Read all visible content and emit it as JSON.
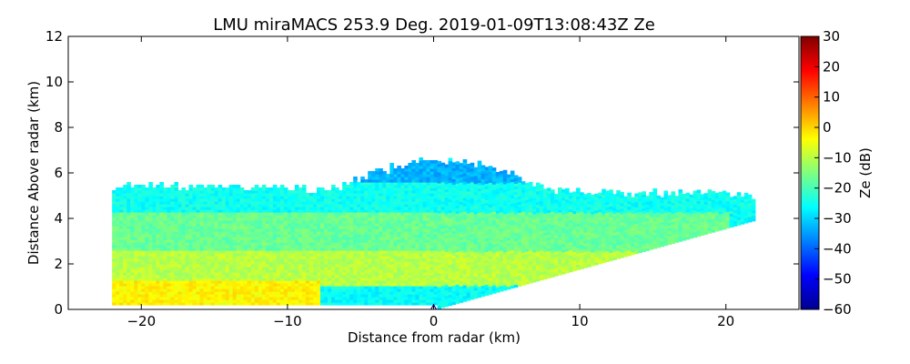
{
  "chart_data": {
    "type": "heatmap",
    "title": "LMU miraMACS 253.9 Deg. 2019-01-09T13:08:43Z  Ze",
    "xlabel": "Distance from radar (km)",
    "ylabel": "Distance Above radar  (km)",
    "xlim": [
      -25,
      25
    ],
    "ylim": [
      0,
      12
    ],
    "x_ticks": [
      -20,
      -10,
      0,
      10,
      20
    ],
    "x_tick_labels": [
      "−20",
      "−10",
      "0",
      "10",
      "20"
    ],
    "y_ticks": [
      0,
      2,
      4,
      6,
      8,
      10,
      12
    ],
    "y_tick_labels": [
      "0",
      "2",
      "4",
      "6",
      "8",
      "10",
      "12"
    ],
    "colorbar": {
      "label": "Ze (dB)",
      "range": [
        -60,
        30
      ],
      "ticks": [
        30,
        20,
        10,
        0,
        -10,
        -20,
        -30,
        -40,
        -50,
        -60
      ],
      "tick_labels": [
        "30",
        "20",
        "10",
        "0",
        "−10",
        "−20",
        "−30",
        "−40",
        "−50",
        "−60"
      ],
      "colormap": "jet"
    },
    "radar_position_km": [
      0,
      0
    ],
    "scan_extent": {
      "left_x_km": -22,
      "right_x_km": 21.8,
      "right_bottom_height_km": 3.9,
      "left_top_height_km": 5.4,
      "right_top_height_km": 5.0,
      "cloud_top_height_km": 6.5
    },
    "reflectivity_regions": [
      {
        "name": "upper cloud edge",
        "x_range_km": [
          -7,
          8
        ],
        "height_range_km": [
          5.0,
          6.5
        ],
        "ze_db": -33
      },
      {
        "name": "upper layer",
        "x_range_km": [
          -22,
          22
        ],
        "height_range_km": [
          4.2,
          5.5
        ],
        "ze_db": -25
      },
      {
        "name": "mid layer",
        "x_range_km": [
          -22,
          20
        ],
        "height_range_km": [
          2.5,
          4.2
        ],
        "ze_db": -17
      },
      {
        "name": "lower layer",
        "x_range_km": [
          -22,
          15
        ],
        "height_range_km": [
          1.0,
          2.5
        ],
        "ze_db": -10
      },
      {
        "name": "near-surface core",
        "x_range_km": [
          -22,
          -8
        ],
        "height_range_km": [
          0.2,
          1.2
        ],
        "ze_db": -3
      }
    ]
  }
}
